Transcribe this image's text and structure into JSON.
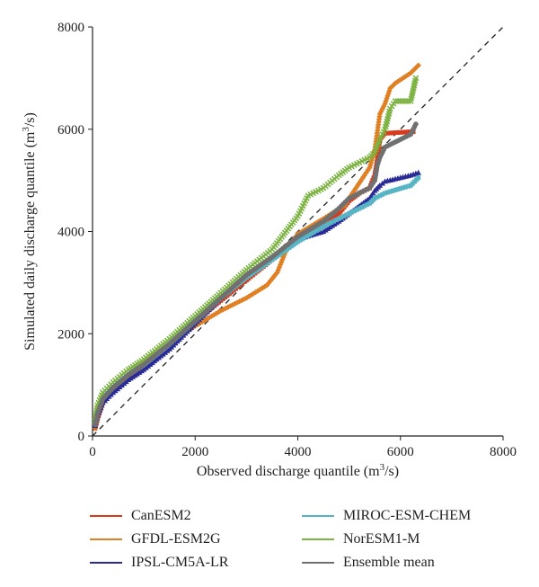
{
  "chart_data": {
    "type": "scatter",
    "title": "",
    "xlabel_main": "Observed discharge quantile (m",
    "xlabel_sup": "3",
    "xlabel_end": "/s)",
    "ylabel_main": "Simulated daily discharge quantile (m",
    "ylabel_sup": "3",
    "ylabel_end": "/s)",
    "xlim": [
      0,
      8000
    ],
    "ylim": [
      0,
      8000
    ],
    "xticks": [
      0,
      2000,
      4000,
      6000,
      8000
    ],
    "yticks": [
      0,
      2000,
      4000,
      6000,
      8000
    ],
    "reference_line": "1:1 dashed",
    "grid": false,
    "legend_position": "bottom",
    "series": [
      {
        "name": "CanESM2",
        "color": "#d83a1c",
        "marker": "square",
        "points": [
          [
            50,
            150
          ],
          [
            100,
            350
          ],
          [
            200,
            650
          ],
          [
            400,
            900
          ],
          [
            700,
            1150
          ],
          [
            1000,
            1400
          ],
          [
            1500,
            1800
          ],
          [
            2000,
            2250
          ],
          [
            2500,
            2650
          ],
          [
            3000,
            3050
          ],
          [
            3500,
            3450
          ],
          [
            4000,
            3850
          ],
          [
            4500,
            4150
          ],
          [
            4800,
            4350
          ],
          [
            5000,
            4600
          ],
          [
            5200,
            4750
          ],
          [
            5400,
            4850
          ],
          [
            5500,
            5100
          ],
          [
            5550,
            5400
          ],
          [
            5600,
            5800
          ],
          [
            5700,
            5920
          ],
          [
            6200,
            5950
          ],
          [
            6250,
            5950
          ]
        ]
      },
      {
        "name": "GFDL-ESM2G",
        "color": "#e08024",
        "marker": "diamond",
        "points": [
          [
            50,
            150
          ],
          [
            100,
            400
          ],
          [
            200,
            700
          ],
          [
            400,
            950
          ],
          [
            700,
            1200
          ],
          [
            1000,
            1450
          ],
          [
            1500,
            1800
          ],
          [
            2000,
            2150
          ],
          [
            2500,
            2450
          ],
          [
            3000,
            2700
          ],
          [
            3400,
            2950
          ],
          [
            3600,
            3200
          ],
          [
            3800,
            3700
          ],
          [
            4000,
            3950
          ],
          [
            4500,
            4250
          ],
          [
            4900,
            4500
          ],
          [
            5100,
            4800
          ],
          [
            5300,
            5100
          ],
          [
            5400,
            5250
          ],
          [
            5500,
            5600
          ],
          [
            5600,
            6300
          ],
          [
            5700,
            6500
          ],
          [
            5800,
            6800
          ],
          [
            5900,
            6900
          ],
          [
            6200,
            7100
          ],
          [
            6350,
            7250
          ]
        ]
      },
      {
        "name": "IPSL-CM5A-LR",
        "color": "#2a2a96",
        "marker": "triangle",
        "points": [
          [
            50,
            200
          ],
          [
            100,
            400
          ],
          [
            200,
            650
          ],
          [
            400,
            850
          ],
          [
            700,
            1100
          ],
          [
            1000,
            1300
          ],
          [
            1500,
            1700
          ],
          [
            2000,
            2200
          ],
          [
            2500,
            2700
          ],
          [
            3000,
            3150
          ],
          [
            3500,
            3500
          ],
          [
            4000,
            3850
          ],
          [
            4500,
            4000
          ],
          [
            4800,
            4200
          ],
          [
            5000,
            4350
          ],
          [
            5200,
            4500
          ],
          [
            5400,
            4650
          ],
          [
            5500,
            4800
          ],
          [
            5600,
            4900
          ],
          [
            5700,
            4980
          ],
          [
            6200,
            5100
          ],
          [
            6350,
            5150
          ]
        ]
      },
      {
        "name": "MIROC-ESM-CHEM",
        "color": "#56b4c4",
        "marker": "square",
        "points": [
          [
            50,
            250
          ],
          [
            100,
            500
          ],
          [
            200,
            750
          ],
          [
            400,
            950
          ],
          [
            700,
            1200
          ],
          [
            1000,
            1400
          ],
          [
            1500,
            1800
          ],
          [
            2000,
            2250
          ],
          [
            2500,
            2700
          ],
          [
            3000,
            3100
          ],
          [
            3500,
            3450
          ],
          [
            4000,
            3800
          ],
          [
            4500,
            4100
          ],
          [
            4800,
            4250
          ],
          [
            5000,
            4350
          ],
          [
            5200,
            4450
          ],
          [
            5400,
            4550
          ],
          [
            5500,
            4650
          ],
          [
            5600,
            4700
          ],
          [
            5700,
            4750
          ],
          [
            6200,
            4900
          ],
          [
            6350,
            5050
          ]
        ]
      },
      {
        "name": "NorESM1-M",
        "color": "#7cb342",
        "marker": "x",
        "points": [
          [
            50,
            300
          ],
          [
            100,
            600
          ],
          [
            200,
            850
          ],
          [
            400,
            1050
          ],
          [
            700,
            1300
          ],
          [
            1000,
            1500
          ],
          [
            1500,
            1900
          ],
          [
            2000,
            2350
          ],
          [
            2500,
            2800
          ],
          [
            3000,
            3250
          ],
          [
            3500,
            3650
          ],
          [
            4000,
            4300
          ],
          [
            4200,
            4700
          ],
          [
            4500,
            4850
          ],
          [
            4800,
            5100
          ],
          [
            5000,
            5250
          ],
          [
            5200,
            5350
          ],
          [
            5400,
            5450
          ],
          [
            5500,
            5550
          ],
          [
            5600,
            5800
          ],
          [
            5700,
            6000
          ],
          [
            5800,
            6400
          ],
          [
            5900,
            6550
          ],
          [
            6200,
            6550
          ],
          [
            6300,
            7000
          ]
        ]
      },
      {
        "name": "Ensemble mean",
        "color": "#707070",
        "marker": "circle",
        "points": [
          [
            50,
            220
          ],
          [
            100,
            450
          ],
          [
            200,
            720
          ],
          [
            400,
            950
          ],
          [
            700,
            1200
          ],
          [
            1000,
            1400
          ],
          [
            1500,
            1800
          ],
          [
            2000,
            2250
          ],
          [
            2500,
            2700
          ],
          [
            3000,
            3150
          ],
          [
            3500,
            3500
          ],
          [
            4000,
            3900
          ],
          [
            4500,
            4200
          ],
          [
            4800,
            4450
          ],
          [
            5000,
            4650
          ],
          [
            5200,
            4750
          ],
          [
            5400,
            4850
          ],
          [
            5500,
            5000
          ],
          [
            5550,
            5300
          ],
          [
            5600,
            5450
          ],
          [
            5700,
            5650
          ],
          [
            6200,
            5900
          ],
          [
            6300,
            6100
          ]
        ]
      }
    ]
  }
}
